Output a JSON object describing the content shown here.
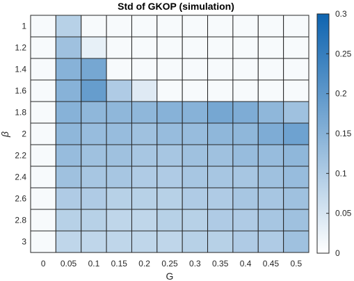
{
  "chart_data": {
    "type": "heatmap",
    "title": "Std of GKOP (simulation)",
    "xlabel": "G",
    "ylabel": "β",
    "x": [
      "0",
      "0.05",
      "0.1",
      "0.15",
      "0.2",
      "0.25",
      "0.3",
      "0.35",
      "0.4",
      "0.45",
      "0.5"
    ],
    "y": [
      "1",
      "1.2",
      "1.4",
      "1.6",
      "1.8",
      "2",
      "2.2",
      "2.4",
      "2.6",
      "2.8",
      "3"
    ],
    "values": [
      [
        0.01,
        0.09,
        0.01,
        0.01,
        0.01,
        0.01,
        0.01,
        0.01,
        0.01,
        0.01,
        0.01
      ],
      [
        0.01,
        0.12,
        0.03,
        0.01,
        0.01,
        0.01,
        0.01,
        0.01,
        0.01,
        0.01,
        0.01
      ],
      [
        0.01,
        0.15,
        0.17,
        0.01,
        0.01,
        0.01,
        0.01,
        0.01,
        0.01,
        0.01,
        0.01
      ],
      [
        0.01,
        0.15,
        0.19,
        0.1,
        0.04,
        0.01,
        0.01,
        0.01,
        0.01,
        0.01,
        0.01
      ],
      [
        0.01,
        0.15,
        0.14,
        0.14,
        0.14,
        0.15,
        0.15,
        0.17,
        0.16,
        0.14,
        0.12
      ],
      [
        0.01,
        0.14,
        0.13,
        0.13,
        0.12,
        0.13,
        0.13,
        0.14,
        0.14,
        0.16,
        0.18
      ],
      [
        0.01,
        0.13,
        0.12,
        0.12,
        0.11,
        0.11,
        0.12,
        0.12,
        0.13,
        0.13,
        0.14
      ],
      [
        0.01,
        0.12,
        0.11,
        0.11,
        0.1,
        0.1,
        0.11,
        0.11,
        0.11,
        0.12,
        0.13
      ],
      [
        0.01,
        0.1,
        0.1,
        0.09,
        0.09,
        0.09,
        0.1,
        0.1,
        0.11,
        0.11,
        0.12
      ],
      [
        0.01,
        0.09,
        0.09,
        0.08,
        0.08,
        0.09,
        0.09,
        0.1,
        0.1,
        0.11,
        0.12
      ],
      [
        0.01,
        0.08,
        0.08,
        0.08,
        0.08,
        0.08,
        0.09,
        0.09,
        0.1,
        0.1,
        0.12
      ]
    ],
    "clim": [
      0,
      0.3
    ],
    "colorbar_ticks": [
      "0",
      "0.05",
      "0.1",
      "0.15",
      "0.2",
      "0.25",
      "0.3"
    ],
    "colormap": {
      "low": "#ffffff",
      "high": "#0e64b0"
    },
    "grid": true
  }
}
